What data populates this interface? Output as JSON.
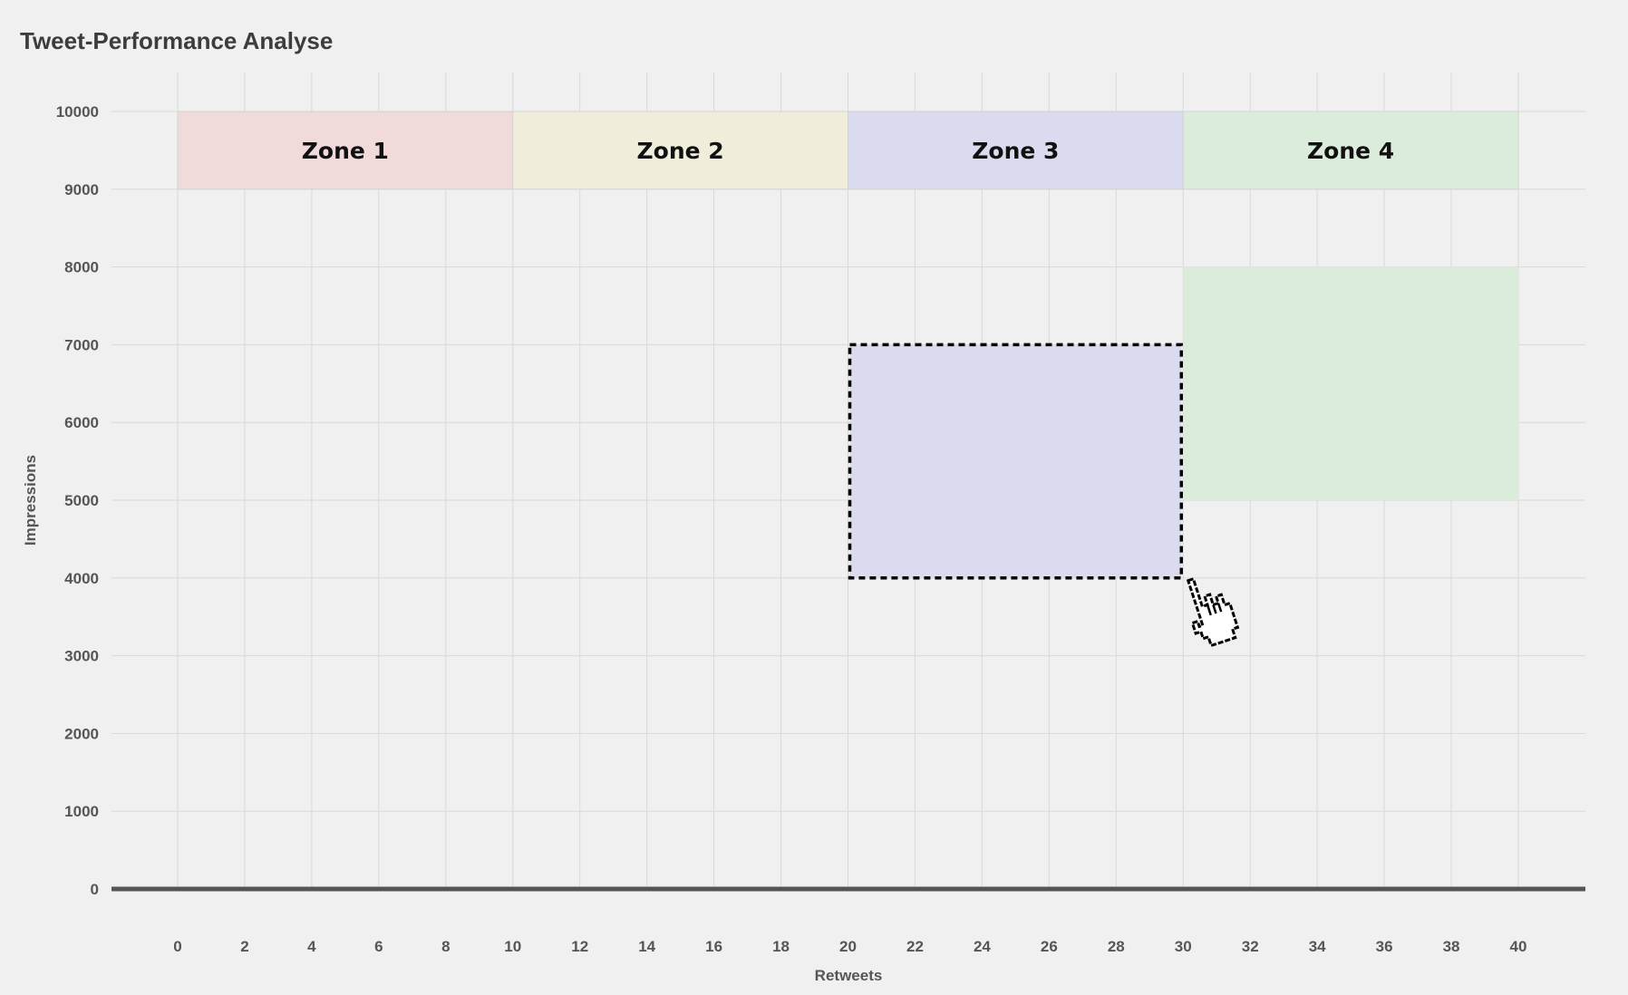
{
  "title": "Tweet-Performance Analyse",
  "colors": {
    "background": "#f0f0f0",
    "grid": "#d9d9d9",
    "baseline": "#555555",
    "zone1": "#f0dada",
    "zone2": "#f0eedb",
    "zone3": "#dbdbef",
    "zone4": "#dbedda",
    "cursor": "#000000"
  },
  "chart_data": {
    "type": "scatter",
    "xlabel": "Retweets",
    "ylabel": "Impressions",
    "xlim": [
      -2,
      42
    ],
    "ylim": [
      0,
      10500
    ],
    "x_ticks": [
      0,
      2,
      4,
      6,
      8,
      10,
      12,
      14,
      16,
      18,
      20,
      22,
      24,
      26,
      28,
      30,
      32,
      34,
      36,
      38,
      40
    ],
    "y_ticks": [
      0,
      1000,
      2000,
      3000,
      4000,
      5000,
      6000,
      7000,
      8000,
      9000,
      10000
    ],
    "grid": true,
    "zones": [
      {
        "label": "Zone 1",
        "x": [
          0,
          10
        ],
        "y": [
          9000,
          10000
        ],
        "color": "#f0dada"
      },
      {
        "label": "Zone 2",
        "x": [
          10,
          20
        ],
        "y": [
          9000,
          10000
        ],
        "color": "#f0eedb"
      },
      {
        "label": "Zone 3",
        "x": [
          20,
          30
        ],
        "y": [
          9000,
          10000
        ],
        "color": "#dbdbef"
      },
      {
        "label": "Zone 4",
        "x": [
          30,
          40
        ],
        "y": [
          9000,
          10000
        ],
        "color": "#dbedda"
      }
    ],
    "regions": [
      {
        "zone": "Zone 4",
        "x": [
          30,
          40
        ],
        "y": [
          5000,
          8000
        ],
        "color": "#dbedda"
      },
      {
        "zone": "Zone 3",
        "x": [
          20,
          30
        ],
        "y": [
          4000,
          7000
        ],
        "color": "#dbdbef",
        "dragging": true
      }
    ],
    "cursor": {
      "icon": "pointer-hand-icon",
      "x": 30,
      "y": 4000
    }
  }
}
